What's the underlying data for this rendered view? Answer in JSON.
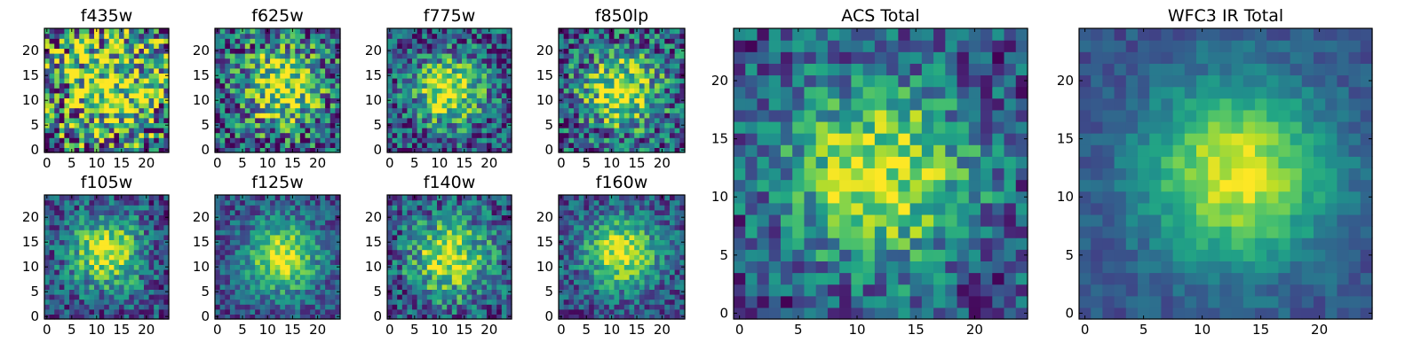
{
  "chart_data": [
    {
      "type": "heatmap",
      "title": "f435w",
      "xticks": [
        "0",
        "5",
        "10",
        "15",
        "20"
      ],
      "yticks": [
        "0",
        "5",
        "10",
        "15",
        "20"
      ],
      "xlim": [
        0,
        25
      ],
      "ylim": [
        0,
        25
      ],
      "grid": false,
      "colormap": "viridis",
      "image": {
        "width": 25,
        "height": 25,
        "peak": [
          13,
          13
        ],
        "spread": [
          8,
          8
        ],
        "noise": 0.6,
        "seed": 11
      }
    },
    {
      "type": "heatmap",
      "title": "f625w",
      "xticks": [
        "0",
        "5",
        "10",
        "15",
        "20"
      ],
      "yticks": [
        "0",
        "5",
        "10",
        "15",
        "20"
      ],
      "xlim": [
        0,
        25
      ],
      "ylim": [
        0,
        25
      ],
      "grid": false,
      "colormap": "viridis",
      "image": {
        "width": 25,
        "height": 25,
        "peak": [
          13,
          13
        ],
        "spread": [
          6,
          6
        ],
        "noise": 0.45,
        "seed": 23
      }
    },
    {
      "type": "heatmap",
      "title": "f775w",
      "xticks": [
        "0",
        "5",
        "10",
        "15",
        "20"
      ],
      "yticks": [
        "0",
        "5",
        "10",
        "15",
        "20"
      ],
      "xlim": [
        0,
        25
      ],
      "ylim": [
        0,
        25
      ],
      "grid": false,
      "colormap": "viridis",
      "image": {
        "width": 25,
        "height": 25,
        "peak": [
          12,
          12
        ],
        "spread": [
          5,
          5
        ],
        "noise": 0.35,
        "seed": 37
      }
    },
    {
      "type": "heatmap",
      "title": "f850lp",
      "xticks": [
        "0",
        "5",
        "10",
        "15",
        "20"
      ],
      "yticks": [
        "0",
        "5",
        "10",
        "15",
        "20"
      ],
      "xlim": [
        0,
        25
      ],
      "ylim": [
        0,
        25
      ],
      "grid": false,
      "colormap": "viridis",
      "image": {
        "width": 25,
        "height": 25,
        "peak": [
          12,
          12
        ],
        "spread": [
          5.5,
          5.5
        ],
        "noise": 0.4,
        "seed": 41
      }
    },
    {
      "type": "heatmap",
      "title": "f105w",
      "xticks": [
        "0",
        "5",
        "10",
        "15",
        "20"
      ],
      "yticks": [
        "0",
        "5",
        "10",
        "15",
        "20"
      ],
      "xlim": [
        0,
        25
      ],
      "ylim": [
        0,
        25
      ],
      "grid": false,
      "colormap": "viridis",
      "image": {
        "width": 25,
        "height": 25,
        "peak": [
          12,
          13
        ],
        "spread": [
          5,
          5
        ],
        "noise": 0.28,
        "seed": 53
      }
    },
    {
      "type": "heatmap",
      "title": "f125w",
      "xticks": [
        "0",
        "5",
        "10",
        "15",
        "20"
      ],
      "yticks": [
        "0",
        "5",
        "10",
        "15",
        "20"
      ],
      "xlim": [
        0,
        25
      ],
      "ylim": [
        0,
        25
      ],
      "grid": false,
      "colormap": "viridis",
      "image": {
        "width": 25,
        "height": 25,
        "peak": [
          13,
          12
        ],
        "spread": [
          5,
          5
        ],
        "noise": 0.22,
        "seed": 67
      }
    },
    {
      "type": "heatmap",
      "title": "f140w",
      "xticks": [
        "0",
        "5",
        "10",
        "15",
        "20"
      ],
      "yticks": [
        "0",
        "5",
        "10",
        "15",
        "20"
      ],
      "xlim": [
        0,
        25
      ],
      "ylim": [
        0,
        25
      ],
      "grid": false,
      "colormap": "viridis",
      "image": {
        "width": 25,
        "height": 25,
        "peak": [
          12,
          12
        ],
        "spread": [
          5.5,
          5.5
        ],
        "noise": 0.32,
        "seed": 79
      }
    },
    {
      "type": "heatmap",
      "title": "f160w",
      "xticks": [
        "0",
        "5",
        "10",
        "15",
        "20"
      ],
      "yticks": [
        "0",
        "5",
        "10",
        "15",
        "20"
      ],
      "xlim": [
        0,
        25
      ],
      "ylim": [
        0,
        25
      ],
      "grid": false,
      "colormap": "viridis",
      "image": {
        "width": 25,
        "height": 25,
        "peak": [
          12,
          13
        ],
        "spread": [
          5,
          5
        ],
        "noise": 0.24,
        "seed": 97
      }
    },
    {
      "type": "heatmap",
      "title": "ACS Total",
      "xticks": [
        "0",
        "5",
        "10",
        "15",
        "20"
      ],
      "yticks": [
        "0",
        "5",
        "10",
        "15",
        "20"
      ],
      "xlim": [
        0,
        25
      ],
      "ylim": [
        0,
        25
      ],
      "grid": false,
      "colormap": "viridis",
      "image": {
        "width": 25,
        "height": 25,
        "peak": [
          12,
          12
        ],
        "spread": [
          5.5,
          5.5
        ],
        "noise": 0.28,
        "seed": 131
      }
    },
    {
      "type": "heatmap",
      "title": "WFC3 IR Total",
      "xticks": [
        "0",
        "5",
        "10",
        "15",
        "20"
      ],
      "yticks": [
        "0",
        "5",
        "10",
        "15",
        "20"
      ],
      "xlim": [
        0,
        25
      ],
      "ylim": [
        0,
        25
      ],
      "grid": false,
      "colormap": "viridis",
      "image": {
        "width": 25,
        "height": 25,
        "peak": [
          13,
          12
        ],
        "spread": [
          5.5,
          5.5
        ],
        "noise": 0.1,
        "seed": 173
      }
    }
  ]
}
